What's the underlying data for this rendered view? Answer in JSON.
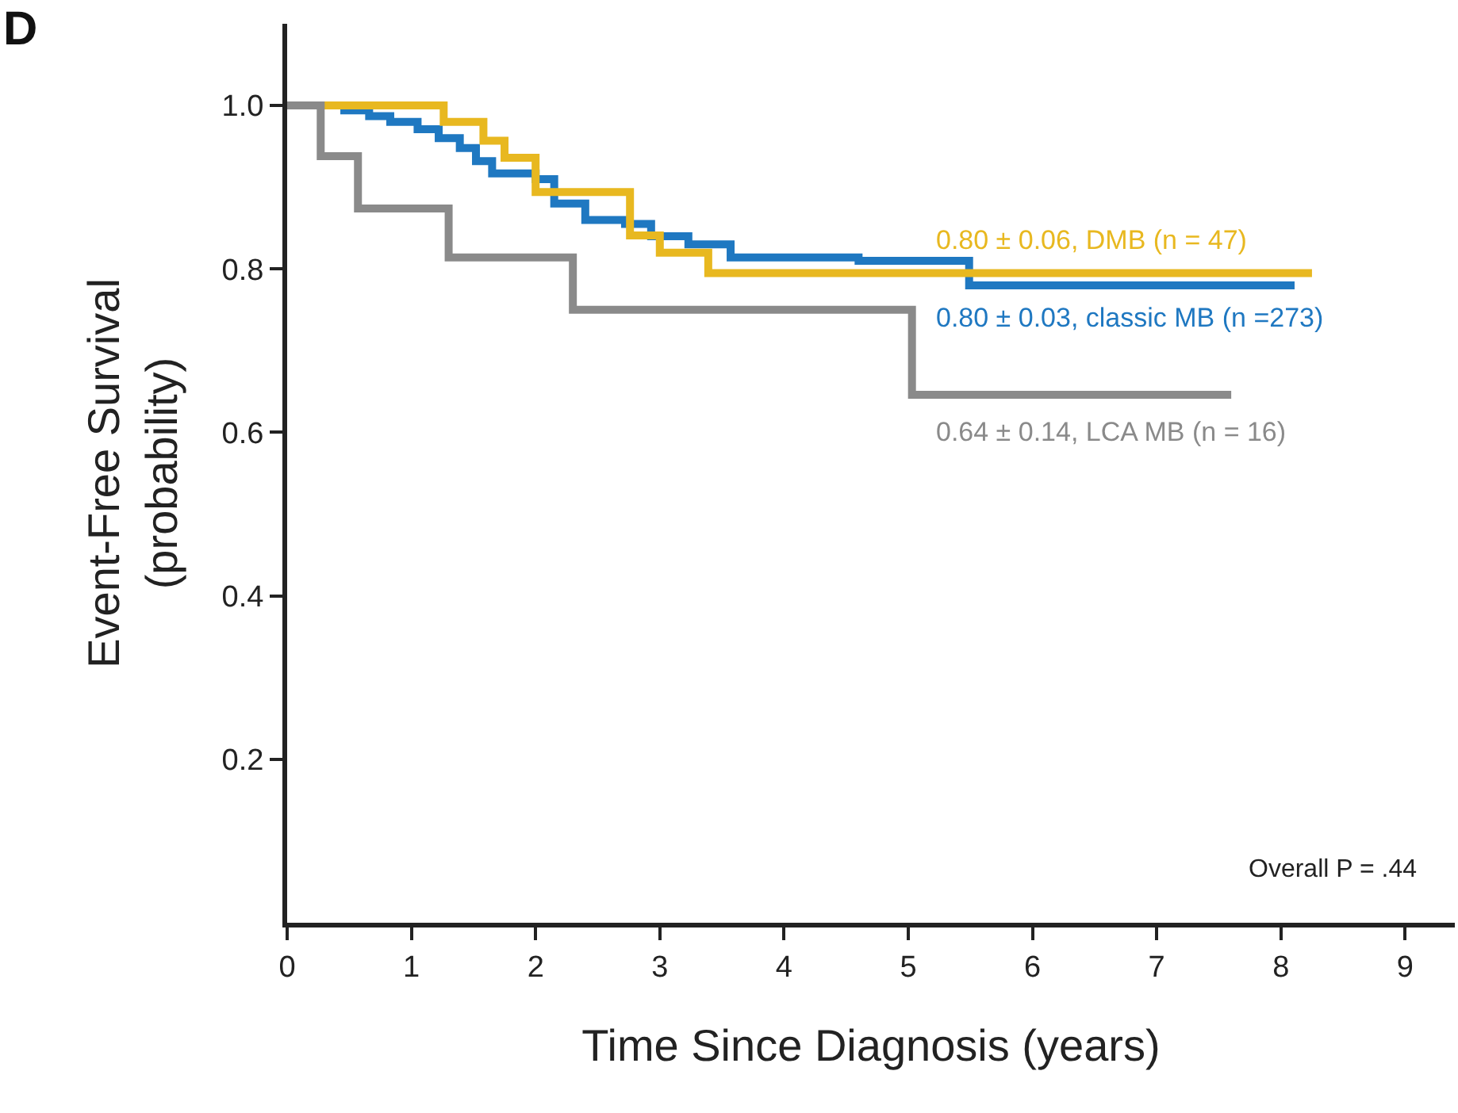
{
  "chart_data": {
    "type": "step",
    "title": "D",
    "xlabel": "Time Since Diagnosis (years)",
    "ylabel": "Event-Free Survival\n(probability)",
    "xlim": [
      0,
      9.4
    ],
    "xticks": [
      0,
      1,
      2,
      3,
      4,
      5,
      6,
      7,
      8,
      9
    ],
    "ylim": [
      0,
      1.1
    ],
    "yticks": [
      {
        "value": 0.2,
        "label": "0.2"
      },
      {
        "value": 0.4,
        "label": "0.4"
      },
      {
        "value": 0.6,
        "label": "0.6"
      },
      {
        "value": 0.8,
        "label": "0.8"
      },
      {
        "value": 1.0,
        "label": "1.0"
      }
    ],
    "legend": false,
    "marker": "none",
    "line_style": "solid",
    "series": [
      {
        "name": "0.80 ± 0.03, classic MB (n =273)",
        "color": "#1f78c1",
        "x": [
          0,
          0.46,
          0.66,
          0.83,
          1.05,
          1.22,
          1.39,
          1.52,
          1.65,
          2.0,
          2.15,
          2.4,
          2.72,
          2.93,
          3.23,
          3.57,
          4.6,
          5.49,
          8.11
        ],
        "values": [
          1.0,
          0.994,
          0.987,
          0.98,
          0.971,
          0.96,
          0.948,
          0.932,
          0.917,
          0.91,
          0.88,
          0.86,
          0.855,
          0.84,
          0.83,
          0.814,
          0.81,
          0.78,
          0.78
        ]
      },
      {
        "name": "0.80 ± 0.06, DMB (n = 47)",
        "color": "#e8b820",
        "x": [
          0,
          1.26,
          1.58,
          1.75,
          2.0,
          2.76,
          3.0,
          3.39,
          8.25
        ],
        "values": [
          1.0,
          0.98,
          0.957,
          0.936,
          0.894,
          0.841,
          0.82,
          0.795,
          0.795
        ]
      },
      {
        "name": "0.64 ± 0.14, LCA MB (n = 16)",
        "color": "#8a8a8a",
        "x": [
          0,
          0.27,
          0.57,
          1.3,
          2.3,
          5.03,
          7.6
        ],
        "values": [
          1.0,
          0.938,
          0.874,
          0.814,
          0.75,
          0.646,
          0.646
        ]
      }
    ],
    "annotations": [
      "Overall P = .44"
    ]
  }
}
